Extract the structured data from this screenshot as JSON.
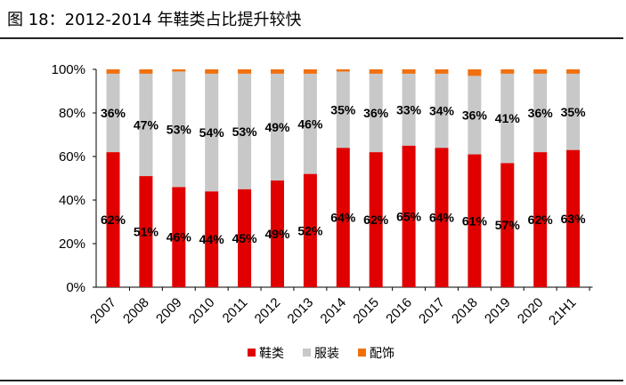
{
  "title": "图 18：2012-2014 年鞋类占比提升较快",
  "chart_data": {
    "type": "bar",
    "stacked": true,
    "title": "",
    "xlabel": "",
    "ylabel": "",
    "ylim": [
      0,
      100
    ],
    "yticks": [
      "0%",
      "20%",
      "40%",
      "60%",
      "80%",
      "100%"
    ],
    "categories": [
      "2007",
      "2008",
      "2009",
      "2010",
      "2011",
      "2012",
      "2013",
      "2014",
      "2015",
      "2016",
      "2017",
      "2018",
      "2019",
      "2020",
      "21H1"
    ],
    "series": [
      {
        "name": "鞋类",
        "color": "#e00000",
        "values": [
          62,
          51,
          46,
          44,
          45,
          49,
          52,
          64,
          62,
          65,
          64,
          61,
          57,
          62,
          63
        ],
        "labels_shown": true
      },
      {
        "name": "服装",
        "color": "#c8c8c8",
        "values": [
          36,
          47,
          53,
          54,
          53,
          49,
          46,
          35,
          36,
          33,
          34,
          36,
          41,
          36,
          35
        ],
        "labels_shown": true
      },
      {
        "name": "配饰",
        "color": "#f07010",
        "values": [
          2,
          2,
          1,
          2,
          2,
          2,
          2,
          1,
          2,
          2,
          2,
          3,
          2,
          2,
          2
        ],
        "labels_shown": false
      }
    ],
    "grid": false,
    "legend": "bottom"
  }
}
